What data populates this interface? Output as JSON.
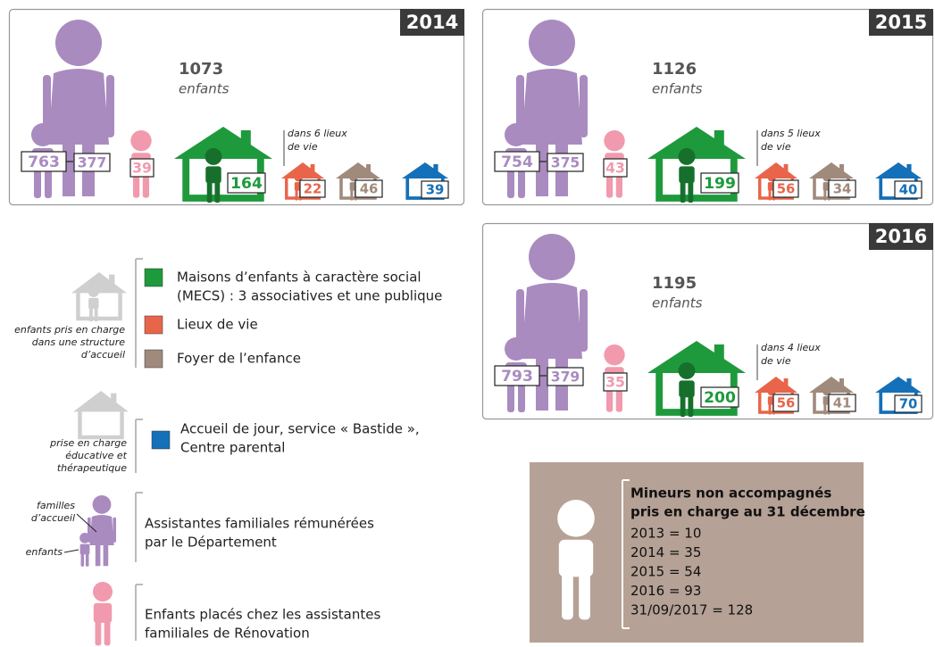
{
  "panels": [
    {
      "year": "2014",
      "total": 1073,
      "unit": "enfants",
      "family_children": 763,
      "assistants": 377,
      "renovation": 39,
      "mecs": 164,
      "lieux_note": [
        "dans 6 lieux",
        "de vie"
      ],
      "lieux": 22,
      "foyer": 46,
      "accueil": 39
    },
    {
      "year": "2015",
      "total": 1126,
      "unit": "enfants",
      "family_children": 754,
      "assistants": 375,
      "renovation": 43,
      "mecs": 199,
      "lieux_note": [
        "dans 5 lieux",
        "de vie"
      ],
      "lieux": 56,
      "foyer": 34,
      "accueil": 40
    },
    {
      "year": "2016",
      "total": 1195,
      "unit": "enfants",
      "family_children": 793,
      "assistants": 379,
      "renovation": 35,
      "mecs": 200,
      "lieux_note": [
        "dans 4 lieux",
        "de vie"
      ],
      "lieux": 56,
      "foyer": 41,
      "accueil": 70
    }
  ],
  "legend": {
    "structure_caption": [
      "enfants pris en charge",
      "dans une structure",
      "d’accueil"
    ],
    "mecs": [
      "Maisons d’enfants à caractère social",
      "(MECS) : 3 associatives et une publique"
    ],
    "lieux": "Lieux de vie",
    "foyer": "Foyer de l’enfance",
    "educ_caption": [
      "prise en charge",
      "éducative et",
      "thérapeutique"
    ],
    "accueil": [
      "Accueil de jour, service « Bastide »,",
      "Centre parental"
    ],
    "families_label": [
      "familles",
      "d’accueil"
    ],
    "children_label": "enfants",
    "assistants": [
      "Assistantes familiales rémunérées",
      "par le Département"
    ],
    "renovation": [
      "Enfants placés chez les assistantes",
      "familiales de Rénovation"
    ]
  },
  "mna": {
    "title": [
      "Mineurs non accompagnés",
      "pris en charge au 31 décembre"
    ],
    "lines": [
      "2013 = 10",
      "2014 = 35",
      "2015 = 54",
      "2016 = 93",
      "31/09/2017 = 128"
    ]
  }
}
